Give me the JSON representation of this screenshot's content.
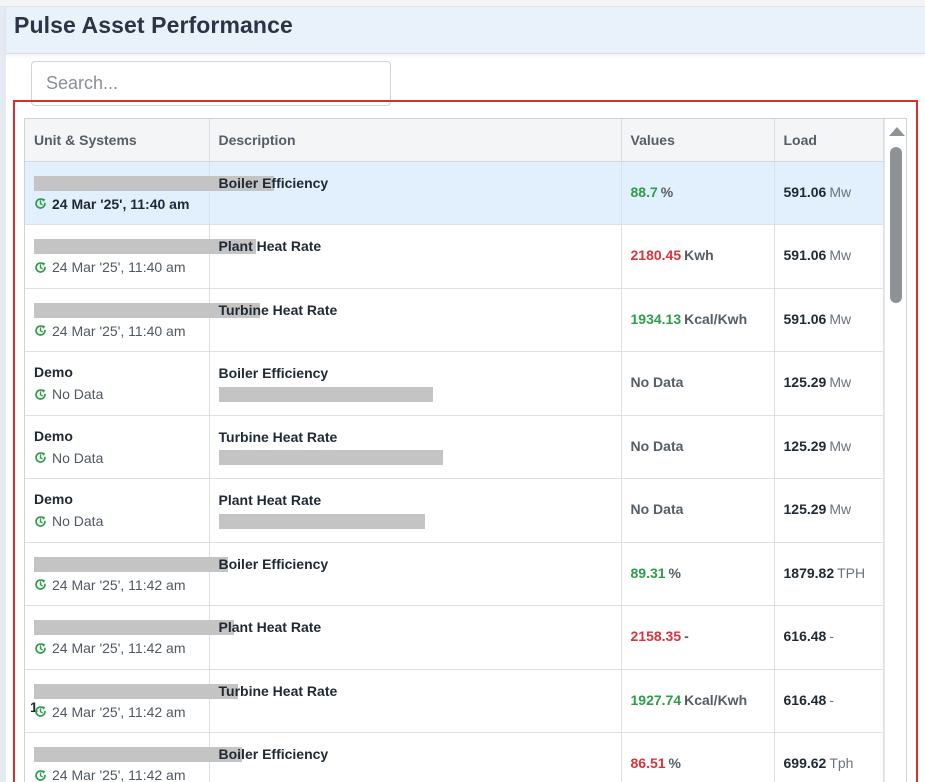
{
  "header": {
    "title": "Pulse Asset Performance"
  },
  "search": {
    "placeholder": "Search..."
  },
  "table": {
    "columns": [
      "Unit & Systems",
      "Description",
      "Values",
      "Load"
    ],
    "rows": [
      {
        "unit": "",
        "unit_redacted": true,
        "time": "24 Mar '25', 11:40 am",
        "desc": "Boiler Efficiency",
        "value": "88.7",
        "value_color": "green",
        "value_unit": "%",
        "load": "591.06",
        "load_unit": "Mw",
        "selected": true
      },
      {
        "unit": "",
        "unit_redacted": true,
        "time": "24 Mar '25', 11:40 am",
        "desc": "Plant Heat Rate",
        "value": "2180.45",
        "value_color": "red",
        "value_unit": "Kwh",
        "load": "591.06",
        "load_unit": "Mw"
      },
      {
        "unit": "",
        "unit_redacted": true,
        "time": "24 Mar '25', 11:40 am",
        "desc": "Turbine Heat Rate",
        "value": "1934.13",
        "value_color": "green",
        "value_unit": "Kcal/Kwh",
        "load": "591.06",
        "load_unit": "Mw"
      },
      {
        "unit": "Demo",
        "time": "No Data",
        "desc": "Boiler Efficiency",
        "value": "No Data",
        "value_color": "gray",
        "value_unit": "",
        "load": "125.29",
        "load_unit": "Mw"
      },
      {
        "unit": "Demo",
        "time": "No Data",
        "desc": "Turbine Heat Rate",
        "value": "No Data",
        "value_color": "gray",
        "value_unit": "",
        "load": "125.29",
        "load_unit": "Mw"
      },
      {
        "unit": "Demo",
        "time": "No Data",
        "desc": "Plant Heat Rate",
        "value": "No Data",
        "value_color": "gray",
        "value_unit": "",
        "load": "125.29",
        "load_unit": "Mw"
      },
      {
        "unit": "",
        "unit_redacted": true,
        "time": "24 Mar '25', 11:42 am",
        "desc": "Boiler Efficiency",
        "value": "89.31",
        "value_color": "green",
        "value_unit": "%",
        "load": "1879.82",
        "load_unit": "TPH"
      },
      {
        "unit": "",
        "unit_redacted": true,
        "time": "24 Mar '25', 11:42 am",
        "desc": "Plant Heat Rate",
        "value": "2158.35",
        "value_color": "red",
        "value_unit": "-",
        "load": "616.48",
        "load_unit": "-"
      },
      {
        "unit": "1",
        "unit_redacted": true,
        "time": "24 Mar '25', 11:42 am",
        "desc": "Turbine Heat Rate",
        "value": "1927.74",
        "value_color": "green",
        "value_unit": "Kcal/Kwh",
        "load": "616.48",
        "load_unit": "-"
      },
      {
        "unit": "",
        "unit_redacted": true,
        "time": "24 Mar '25', 11:42 am",
        "desc": "Boiler Efficiency",
        "value": "86.51",
        "value_color": "red",
        "value_unit": "%",
        "load": "699.62",
        "load_unit": "Tph"
      }
    ]
  },
  "colors": {
    "green": "#2e9d48",
    "red": "#d9343a",
    "selected_row": "#e2effc",
    "highlight_box": "#e02b2b"
  },
  "icons": {
    "time": "refresh-clock-icon",
    "scroll_up": "scroll-up-arrow-icon"
  }
}
